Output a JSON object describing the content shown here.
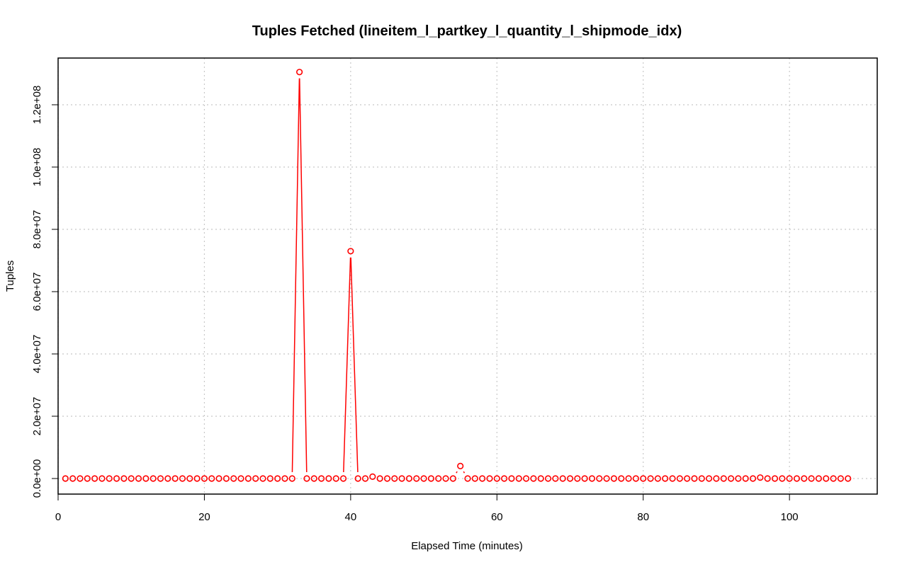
{
  "chart_data": {
    "type": "line",
    "title": "Tuples Fetched (lineitem_l_partkey_l_quantity_l_shipmode_idx)",
    "xlabel": "Elapsed Time (minutes)",
    "ylabel": "Tuples",
    "xlim": [
      0,
      112
    ],
    "ylim": [
      -5000000,
      135000000
    ],
    "x_ticks": [
      0,
      20,
      40,
      60,
      80,
      100
    ],
    "x_tick_labels": [
      "0",
      "20",
      "40",
      "60",
      "80",
      "100"
    ],
    "y_ticks": [
      0,
      20000000,
      40000000,
      60000000,
      80000000,
      100000000,
      120000000
    ],
    "y_tick_labels": [
      "0.0e+00",
      "2.0e+07",
      "4.0e+07",
      "6.0e+07",
      "8.0e+07",
      "1.0e+08",
      "1.2e+08"
    ],
    "grid": true,
    "color": "#ff0000",
    "series": [
      {
        "x": [
          1,
          2,
          3,
          4,
          5,
          6,
          7,
          8,
          9,
          10,
          11,
          12,
          13,
          14,
          15,
          16,
          17,
          18,
          19,
          20,
          21,
          22,
          23,
          24,
          25,
          26,
          27,
          28,
          29,
          30,
          31,
          32,
          33,
          34,
          35,
          36,
          37,
          38,
          39,
          40,
          41,
          42,
          43,
          44,
          45,
          46,
          47,
          48,
          49,
          50,
          51,
          52,
          53,
          54,
          55,
          56,
          57,
          58,
          59,
          60,
          61,
          62,
          63,
          64,
          65,
          66,
          67,
          68,
          69,
          70,
          71,
          72,
          73,
          74,
          75,
          76,
          77,
          78,
          79,
          80,
          81,
          82,
          83,
          84,
          85,
          86,
          87,
          88,
          89,
          90,
          91,
          92,
          93,
          94,
          95,
          96,
          97,
          98,
          99,
          100,
          101,
          102,
          103,
          104,
          105,
          106,
          107,
          108
        ],
        "values": [
          0,
          0,
          0,
          0,
          0,
          0,
          0,
          0,
          0,
          0,
          0,
          0,
          0,
          0,
          0,
          0,
          0,
          0,
          0,
          0,
          0,
          0,
          0,
          0,
          0,
          0,
          0,
          0,
          0,
          0,
          0,
          0,
          130500000,
          0,
          0,
          0,
          0,
          0,
          0,
          73000000,
          0,
          0,
          600000,
          0,
          0,
          0,
          0,
          0,
          0,
          0,
          0,
          0,
          0,
          0,
          4000000,
          0,
          0,
          0,
          0,
          0,
          0,
          0,
          0,
          0,
          0,
          0,
          0,
          0,
          0,
          0,
          0,
          0,
          0,
          0,
          0,
          0,
          0,
          0,
          0,
          0,
          0,
          0,
          0,
          0,
          0,
          0,
          0,
          0,
          0,
          0,
          0,
          0,
          0,
          0,
          0,
          300000,
          0,
          0,
          0,
          0,
          0,
          0,
          0,
          0,
          0,
          0,
          0,
          0
        ]
      }
    ]
  }
}
